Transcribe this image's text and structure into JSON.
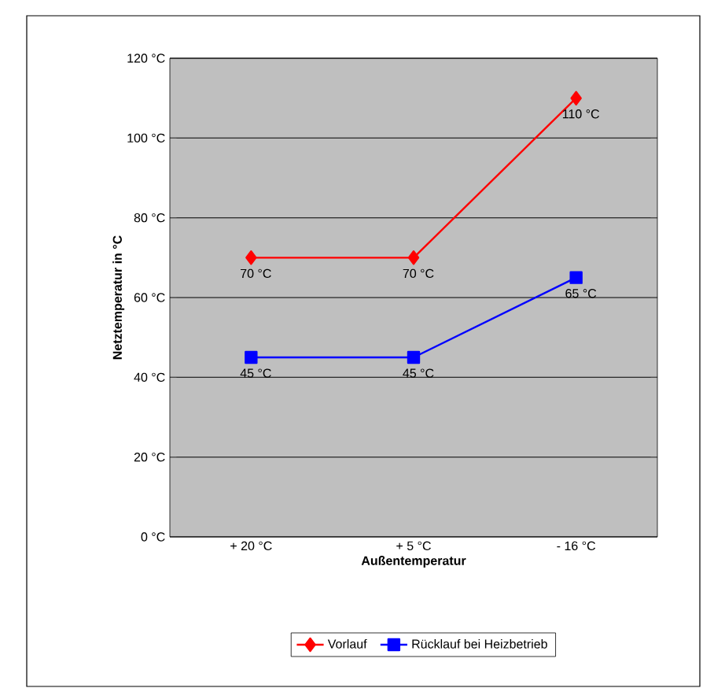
{
  "chart_data": {
    "type": "line",
    "xlabel": "Außentemperatur",
    "ylabel": "Netztemperatur in °C",
    "categories": [
      "+ 20 °C",
      "+ 5 °C",
      "- 16 °C"
    ],
    "ylim": [
      0,
      120
    ],
    "yticks": [
      {
        "value": 0,
        "label": "0 °C"
      },
      {
        "value": 20,
        "label": "20 °C"
      },
      {
        "value": 40,
        "label": "40 °C"
      },
      {
        "value": 60,
        "label": "60 °C"
      },
      {
        "value": 80,
        "label": "80 °C"
      },
      {
        "value": 100,
        "label": "100 °C"
      },
      {
        "value": 120,
        "label": "120 °C"
      }
    ],
    "grid": "y",
    "legend": "bottom",
    "line_style": "solid",
    "series": [
      {
        "name": "Vorlauf",
        "color": "#ff0000",
        "marker": "diamond",
        "values": [
          70,
          70,
          110
        ],
        "value_labels": [
          "70 °C",
          "70 °C",
          "110 °C"
        ]
      },
      {
        "name": "Rücklauf bei Heizbetrieb",
        "color": "#0000ff",
        "marker": "square",
        "values": [
          45,
          45,
          65
        ],
        "value_labels": [
          "45 °C",
          "45 °C",
          "65 °C"
        ]
      }
    ]
  }
}
